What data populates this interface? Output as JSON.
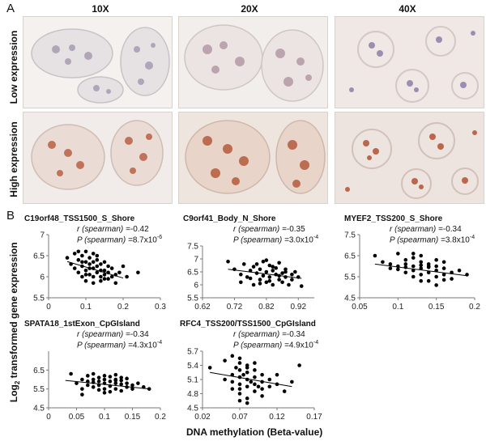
{
  "panel_a": {
    "letter": "A",
    "columns": [
      "10X",
      "20X",
      "40X"
    ],
    "rows": [
      "Low expression",
      "High expression"
    ],
    "stain_colors": {
      "low_nuclei": "#8e7fa8",
      "high_nuclei": "#b55a3c",
      "background": "#efe9e4"
    }
  },
  "panel_b": {
    "letter": "B",
    "y_axis_label_prefix": "Log",
    "y_axis_label_sub": "2",
    "y_axis_label_suffix": " transformed gene expression",
    "x_axis_label": "DNA methylation (Beta-value)"
  },
  "chart_data": [
    {
      "type": "scatter",
      "title": "C19orf48_TSS1500_S_Shore",
      "r_label": "r (spearman) =",
      "r_value": "-0.42",
      "p_label": "P (spearman) =",
      "p_value": "8.7x10",
      "p_exp": "-6",
      "xlim": [
        0,
        0.3
      ],
      "ylim": [
        5.5,
        7
      ],
      "xticks": [
        "0",
        "0.1",
        "0.2",
        "0.3"
      ],
      "yticks": [
        "5.5",
        "6",
        "6.5",
        "7"
      ],
      "xtick_values": [
        0,
        0.1,
        0.2,
        0.3
      ],
      "ytick_values": [
        5.5,
        6,
        6.5,
        7
      ],
      "trend": [
        [
          0.05,
          6.36
        ],
        [
          0.2,
          5.97
        ]
      ],
      "points": [
        [
          0.05,
          6.45
        ],
        [
          0.06,
          6.3
        ],
        [
          0.07,
          6.55
        ],
        [
          0.07,
          6.2
        ],
        [
          0.08,
          6.4
        ],
        [
          0.08,
          6.1
        ],
        [
          0.09,
          6.5
        ],
        [
          0.09,
          6.25
        ],
        [
          0.09,
          6.0
        ],
        [
          0.1,
          6.35
        ],
        [
          0.1,
          6.6
        ],
        [
          0.1,
          6.15
        ],
        [
          0.1,
          5.9
        ],
        [
          0.11,
          6.3
        ],
        [
          0.11,
          6.05
        ],
        [
          0.11,
          6.45
        ],
        [
          0.12,
          6.2
        ],
        [
          0.12,
          6.0
        ],
        [
          0.12,
          6.55
        ],
        [
          0.12,
          5.85
        ],
        [
          0.13,
          6.25
        ],
        [
          0.13,
          6.1
        ],
        [
          0.13,
          6.4
        ],
        [
          0.14,
          6.0
        ],
        [
          0.14,
          6.3
        ],
        [
          0.14,
          5.9
        ],
        [
          0.15,
          6.15
        ],
        [
          0.15,
          6.35
        ],
        [
          0.15,
          5.95
        ],
        [
          0.16,
          6.1
        ],
        [
          0.16,
          6.25
        ],
        [
          0.17,
          6.0
        ],
        [
          0.17,
          6.2
        ],
        [
          0.18,
          6.05
        ],
        [
          0.18,
          5.85
        ],
        [
          0.19,
          6.1
        ],
        [
          0.2,
          6.25
        ],
        [
          0.21,
          6.0
        ],
        [
          0.24,
          6.1
        ],
        [
          0.08,
          6.6
        ],
        [
          0.1,
          6.05
        ],
        [
          0.11,
          6.2
        ],
        [
          0.13,
          6.5
        ],
        [
          0.14,
          6.15
        ],
        [
          0.16,
          5.95
        ],
        [
          0.12,
          6.35
        ],
        [
          0.09,
          6.35
        ],
        [
          0.15,
          6.05
        ]
      ]
    },
    {
      "type": "scatter",
      "title": "C9orf41_Body_N_Shore",
      "r_label": "r (spearman) =",
      "r_value": "-0.35",
      "p_label": "P (spearman) =",
      "p_value": "3.0x10",
      "p_exp": "-4",
      "xlim": [
        0.62,
        0.97
      ],
      "ylim": [
        5.5,
        7.5
      ],
      "xticks": [
        "0.62",
        "0.72",
        "0.82",
        "0.92"
      ],
      "yticks": [
        "5.5",
        "6",
        "6.5",
        "7",
        "7.5"
      ],
      "xtick_values": [
        0.62,
        0.72,
        0.82,
        0.92
      ],
      "ytick_values": [
        5.5,
        6,
        6.5,
        7,
        7.5
      ],
      "trend": [
        [
          0.7,
          6.6
        ],
        [
          0.93,
          6.25
        ]
      ],
      "points": [
        [
          0.7,
          6.9
        ],
        [
          0.72,
          6.6
        ],
        [
          0.74,
          6.4
        ],
        [
          0.75,
          6.8
        ],
        [
          0.76,
          6.3
        ],
        [
          0.77,
          6.55
        ],
        [
          0.78,
          6.0
        ],
        [
          0.78,
          6.7
        ],
        [
          0.79,
          6.45
        ],
        [
          0.8,
          6.2
        ],
        [
          0.8,
          6.6
        ],
        [
          0.81,
          6.9
        ],
        [
          0.81,
          6.35
        ],
        [
          0.82,
          6.5
        ],
        [
          0.82,
          6.1
        ],
        [
          0.83,
          6.75
        ],
        [
          0.83,
          6.3
        ],
        [
          0.84,
          6.55
        ],
        [
          0.84,
          6.0
        ],
        [
          0.85,
          6.4
        ],
        [
          0.85,
          6.65
        ],
        [
          0.86,
          6.2
        ],
        [
          0.86,
          6.85
        ],
        [
          0.87,
          6.45
        ],
        [
          0.87,
          6.1
        ],
        [
          0.88,
          6.3
        ],
        [
          0.88,
          6.6
        ],
        [
          0.89,
          6.0
        ],
        [
          0.9,
          6.4
        ],
        [
          0.9,
          6.2
        ],
        [
          0.91,
          6.5
        ],
        [
          0.92,
          6.3
        ],
        [
          0.93,
          5.95
        ],
        [
          0.79,
          6.8
        ],
        [
          0.84,
          6.7
        ],
        [
          0.86,
          6.35
        ],
        [
          0.8,
          6.05
        ],
        [
          0.83,
          6.15
        ],
        [
          0.77,
          6.25
        ],
        [
          0.88,
          6.5
        ],
        [
          0.74,
          6.1
        ],
        [
          0.82,
          6.95
        ]
      ]
    },
    {
      "type": "scatter",
      "title": "MYEF2_TSS200_S_Shore",
      "r_label": "r (spearman) =",
      "r_value": "-0.34",
      "p_label": "P (spearman) =",
      "p_value": "3.8x10",
      "p_exp": "-4",
      "xlim": [
        0.05,
        0.2
      ],
      "ylim": [
        4.5,
        7.5
      ],
      "xticks": [
        "0.05",
        "0.1",
        "0.15",
        "0.2"
      ],
      "yticks": [
        "4.5",
        "5.5",
        "6.5",
        "7.5"
      ],
      "xtick_values": [
        0.05,
        0.1,
        0.15,
        0.2
      ],
      "ytick_values": [
        4.5,
        5.5,
        6.5,
        7.5
      ],
      "trend": [
        [
          0.07,
          6.1
        ],
        [
          0.19,
          5.55
        ]
      ],
      "points": [
        [
          0.07,
          6.5
        ],
        [
          0.08,
          6.2
        ],
        [
          0.09,
          5.9
        ],
        [
          0.1,
          6.6
        ],
        [
          0.1,
          6.0
        ],
        [
          0.11,
          6.3
        ],
        [
          0.11,
          5.7
        ],
        [
          0.11,
          6.1
        ],
        [
          0.12,
          6.4
        ],
        [
          0.12,
          5.8
        ],
        [
          0.12,
          6.0
        ],
        [
          0.12,
          5.5
        ],
        [
          0.13,
          6.2
        ],
        [
          0.13,
          5.9
        ],
        [
          0.13,
          5.6
        ],
        [
          0.13,
          6.5
        ],
        [
          0.14,
          6.0
        ],
        [
          0.14,
          5.7
        ],
        [
          0.14,
          5.3
        ],
        [
          0.14,
          6.1
        ],
        [
          0.15,
          5.8
        ],
        [
          0.15,
          6.3
        ],
        [
          0.15,
          5.5
        ],
        [
          0.15,
          5.1
        ],
        [
          0.16,
          5.9
        ],
        [
          0.16,
          5.6
        ],
        [
          0.16,
          6.2
        ],
        [
          0.17,
          5.7
        ],
        [
          0.17,
          5.4
        ],
        [
          0.18,
          5.8
        ],
        [
          0.19,
          5.6
        ],
        [
          0.12,
          6.6
        ],
        [
          0.13,
          5.3
        ],
        [
          0.14,
          5.95
        ],
        [
          0.16,
          5.35
        ],
        [
          0.1,
          5.85
        ],
        [
          0.09,
          6.1
        ],
        [
          0.15,
          6.0
        ],
        [
          0.13,
          6.05
        ],
        [
          0.11,
          5.95
        ]
      ]
    },
    {
      "type": "scatter",
      "title": "SPATA18_1stExon_CpGIsland",
      "r_label": "r (spearman) =",
      "r_value": "-0.34",
      "p_label": "P (spearman) =",
      "p_value": "4.3x10",
      "p_exp": "-4",
      "xlim": [
        0,
        0.2
      ],
      "ylim": [
        4.5,
        7.5
      ],
      "xticks": [
        "0",
        "0.05",
        "0.1",
        "0.15",
        "0.2"
      ],
      "yticks": [
        "4.5",
        "5.5",
        "6.5"
      ],
      "xtick_values": [
        0,
        0.05,
        0.1,
        0.15,
        0.2
      ],
      "ytick_values": [
        4.5,
        5.5,
        6.5
      ],
      "trend": [
        [
          0.03,
          5.95
        ],
        [
          0.18,
          5.5
        ]
      ],
      "points": [
        [
          0.04,
          6.3
        ],
        [
          0.05,
          5.8
        ],
        [
          0.06,
          6.0
        ],
        [
          0.06,
          5.5
        ],
        [
          0.07,
          5.9
        ],
        [
          0.07,
          6.2
        ],
        [
          0.07,
          5.7
        ],
        [
          0.08,
          6.0
        ],
        [
          0.08,
          5.6
        ],
        [
          0.08,
          6.3
        ],
        [
          0.09,
          5.9
        ],
        [
          0.09,
          5.7
        ],
        [
          0.09,
          6.1
        ],
        [
          0.1,
          5.8
        ],
        [
          0.1,
          6.0
        ],
        [
          0.1,
          5.5
        ],
        [
          0.11,
          5.9
        ],
        [
          0.11,
          6.15
        ],
        [
          0.11,
          5.65
        ],
        [
          0.12,
          5.8
        ],
        [
          0.12,
          6.0
        ],
        [
          0.12,
          5.5
        ],
        [
          0.13,
          5.75
        ],
        [
          0.13,
          5.95
        ],
        [
          0.13,
          5.4
        ],
        [
          0.14,
          5.8
        ],
        [
          0.14,
          5.6
        ],
        [
          0.14,
          6.05
        ],
        [
          0.15,
          5.7
        ],
        [
          0.15,
          5.5
        ],
        [
          0.16,
          5.8
        ],
        [
          0.17,
          5.6
        ],
        [
          0.18,
          5.5
        ],
        [
          0.06,
          5.2
        ],
        [
          0.1,
          5.3
        ],
        [
          0.12,
          6.25
        ],
        [
          0.09,
          5.45
        ],
        [
          0.11,
          5.35
        ],
        [
          0.13,
          6.1
        ],
        [
          0.08,
          5.85
        ],
        [
          0.1,
          6.2
        ],
        [
          0.12,
          5.95
        ]
      ]
    },
    {
      "type": "scatter",
      "title": "RFC4_TSS200/TSS1500_CpGIsland",
      "r_label": "r (spearman) =",
      "r_value": "-0.34",
      "p_label": "P (spearman) =",
      "p_value": "4.9x10",
      "p_exp": "-4",
      "xlim": [
        0.02,
        0.17
      ],
      "ylim": [
        4.5,
        5.7
      ],
      "xticks": [
        "0.02",
        "0.07",
        "0.12",
        "0.17"
      ],
      "yticks": [
        "4.5",
        "4.8",
        "5.1",
        "5.4",
        "5.7"
      ],
      "xtick_values": [
        0.02,
        0.07,
        0.12,
        0.17
      ],
      "ytick_values": [
        4.5,
        4.8,
        5.1,
        5.4,
        5.7
      ],
      "trend": [
        [
          0.03,
          5.25
        ],
        [
          0.14,
          4.95
        ]
      ],
      "points": [
        [
          0.03,
          5.35
        ],
        [
          0.05,
          5.5
        ],
        [
          0.05,
          5.1
        ],
        [
          0.06,
          5.6
        ],
        [
          0.06,
          5.2
        ],
        [
          0.06,
          4.9
        ],
        [
          0.07,
          5.45
        ],
        [
          0.07,
          5.3
        ],
        [
          0.07,
          5.15
        ],
        [
          0.07,
          5.0
        ],
        [
          0.07,
          4.8
        ],
        [
          0.07,
          4.65
        ],
        [
          0.08,
          5.4
        ],
        [
          0.08,
          5.25
        ],
        [
          0.08,
          5.1
        ],
        [
          0.08,
          4.95
        ],
        [
          0.08,
          4.7
        ],
        [
          0.09,
          5.3
        ],
        [
          0.09,
          5.15
        ],
        [
          0.09,
          5.0
        ],
        [
          0.09,
          4.85
        ],
        [
          0.1,
          5.2
        ],
        [
          0.1,
          5.05
        ],
        [
          0.1,
          4.9
        ],
        [
          0.11,
          5.1
        ],
        [
          0.11,
          4.95
        ],
        [
          0.12,
          5.2
        ],
        [
          0.12,
          5.0
        ],
        [
          0.13,
          4.85
        ],
        [
          0.14,
          5.05
        ],
        [
          0.15,
          5.4
        ],
        [
          0.06,
          5.05
        ],
        [
          0.07,
          5.55
        ],
        [
          0.08,
          4.6
        ],
        [
          0.09,
          5.45
        ],
        [
          0.1,
          4.75
        ],
        [
          0.065,
          5.35
        ],
        [
          0.075,
          5.2
        ],
        [
          0.085,
          5.05
        ],
        [
          0.095,
          4.95
        ],
        [
          0.07,
          4.9
        ],
        [
          0.08,
          5.35
        ]
      ]
    }
  ]
}
